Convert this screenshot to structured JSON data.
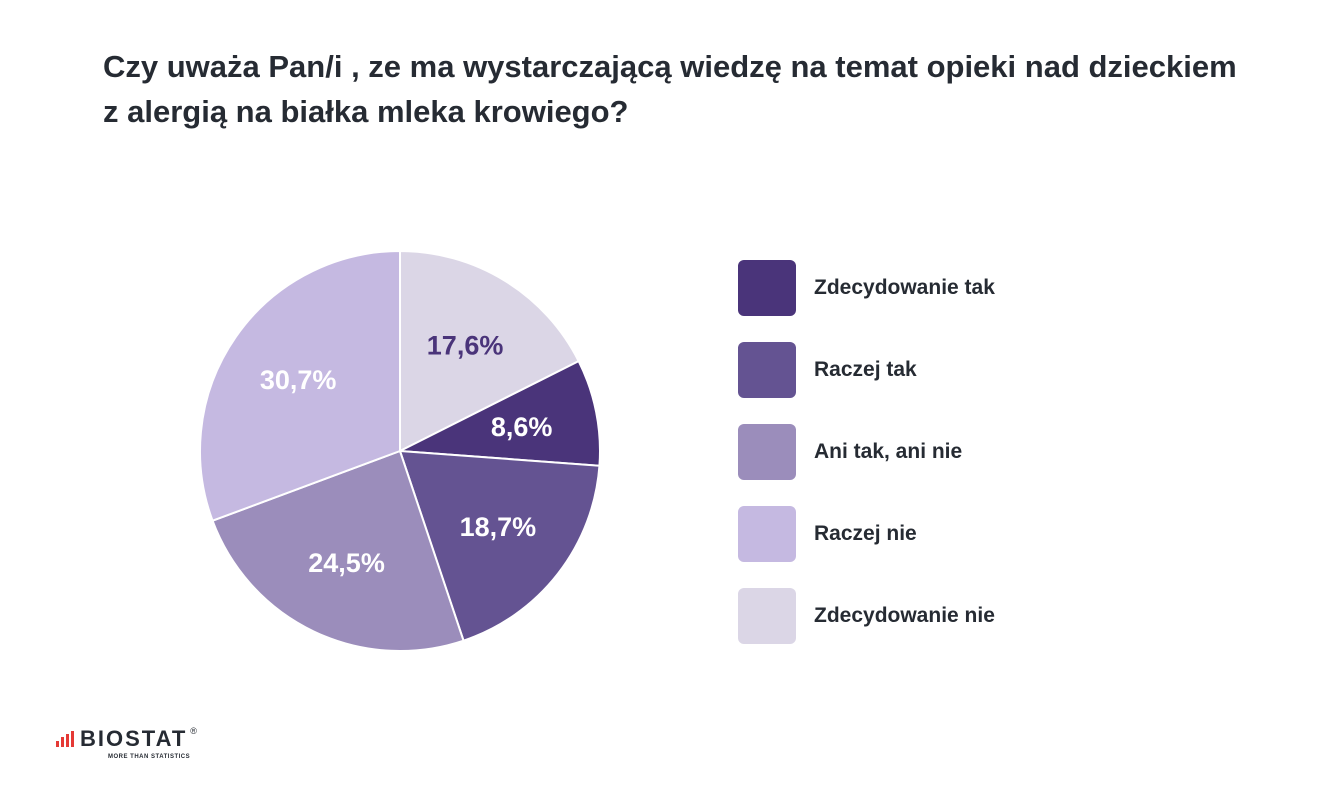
{
  "chart_data": {
    "type": "pie",
    "title": "Czy uważa Pan/i , ze ma wystarczającą wiedzę na temat opieki nad dzieckiem z alergią na białka mleka krowiego?",
    "legend_position": "right",
    "slices": [
      {
        "name": "Zdecydowanie tak",
        "value": 8.6,
        "label": "8,6%",
        "color": "#4a347a",
        "label_color": "#ffffff"
      },
      {
        "name": "Raczej tak",
        "value": 18.7,
        "label": "18,7%",
        "color": "#645392",
        "label_color": "#ffffff"
      },
      {
        "name": "Ani tak, ani nie",
        "value": 24.5,
        "label": "24,5%",
        "color": "#9b8dbb",
        "label_color": "#ffffff"
      },
      {
        "name": "Raczej nie",
        "value": 30.7,
        "label": "30,7%",
        "color": "#c5b9e1",
        "label_color": "#ffffff"
      },
      {
        "name": "Zdecydowanie nie",
        "value": 17.6,
        "label": "17,6%",
        "color": "#dbd6e6",
        "label_color": "#4a347a"
      }
    ]
  },
  "logo": {
    "text": "BIOSTAT",
    "tagline": "MORE THAN STATISTICS",
    "reg": "®"
  }
}
